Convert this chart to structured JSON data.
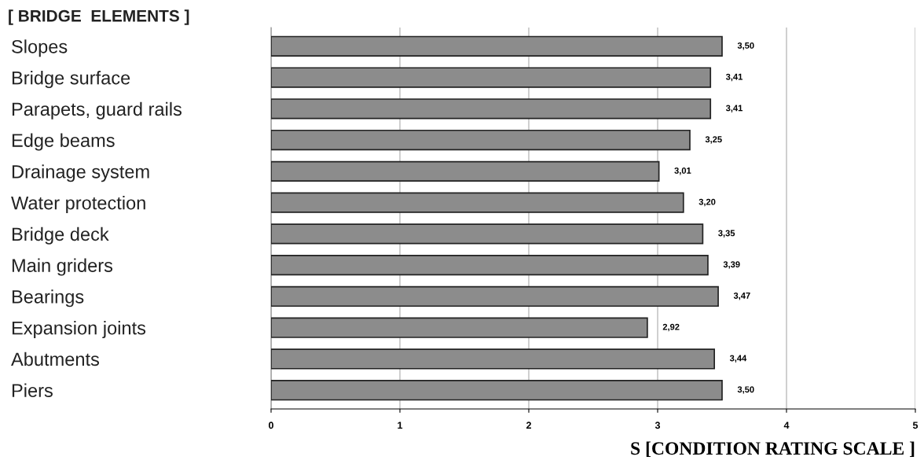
{
  "chart_data": {
    "type": "bar",
    "orientation": "horizontal",
    "title": "[ BRIDGE  ELEMENTS ]",
    "xlabel": "S [CONDITION RATING SCALE ]",
    "categories": [
      "Slopes",
      "Bridge surface",
      "Parapets, guard rails",
      "Edge beams",
      "Drainage system",
      "Water protection",
      "Bridge deck",
      "Main griders",
      "Bearings",
      "Expansion joints",
      "Abutments",
      "Piers"
    ],
    "values": [
      3.5,
      3.41,
      3.41,
      3.25,
      3.01,
      3.2,
      3.35,
      3.39,
      3.47,
      2.92,
      3.44,
      3.5
    ],
    "value_labels": [
      "3,50",
      "3,41",
      "3,41",
      "3,25",
      "3,01",
      "3,20",
      "3,35",
      "3,39",
      "3,47",
      "2,92",
      "3,44",
      "3,50"
    ],
    "color": "#8c8c8c",
    "xlim": [
      0,
      5
    ],
    "xticks": [
      0,
      1,
      2,
      3,
      4,
      5
    ],
    "grid": "x"
  }
}
